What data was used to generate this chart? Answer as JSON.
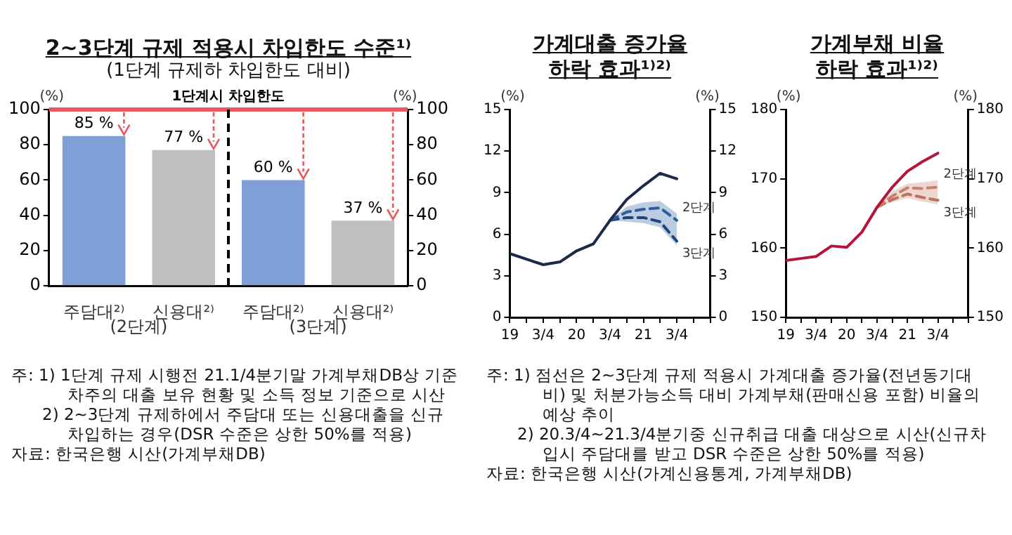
{
  "chart_data": [
    {
      "type": "bar",
      "title": "2~3단계 규제 적용시 차입한도 수준¹⁾",
      "subtitle": "(1단계 규제하 차입한도 대비)",
      "categories": [
        "주담대²⁾",
        "신용대²⁾",
        "주담대²⁾",
        "신용대²⁾"
      ],
      "values": [
        85,
        77,
        60,
        37
      ],
      "colors": [
        "#7f9fd6",
        "#bfbfbf",
        "#7f9fd6",
        "#bfbfbf"
      ],
      "value_labels": [
        "85 %",
        "77 %",
        "60 %",
        "37 %"
      ],
      "ylim": [
        0,
        100
      ],
      "yticks": [
        0,
        20,
        40,
        60,
        80,
        100
      ],
      "y2lim": [
        0,
        100
      ],
      "y2ticks": [
        0,
        20,
        40,
        60,
        80,
        100
      ],
      "ylabel": "(%)",
      "y2label": "(%)",
      "ref_lines": [
        {
          "axis": "y",
          "value": 100,
          "label": "1단계시 차입한도",
          "color": "#e8585f"
        }
      ],
      "annotations": [
        "(2단계)",
        "(3단계)",
        "주: 1) 1단계 규제 시행전 21.1/4분기말 가계부채DB상 기준 차주의 대출 보유 현황 및 소득 정보 기준으로 시산",
        "2) 2~3단계 규제하에서 주담대 또는 신용대출을 신규 차입하는 경우(DSR 수준은 상한 50%를 적용)",
        "자료: 한국은행 시산(가계부채DB)"
      ],
      "grid": false,
      "legend": false
    },
    {
      "type": "line",
      "title": "가계대출 증가율 하락 효과¹⁾²⁾",
      "categories": [
        "19",
        null,
        "3/4",
        null,
        "20",
        null,
        "3/4",
        null,
        "21",
        null,
        "3/4",
        null,
        null
      ],
      "series": [
        {
          "color": "#1b2a47",
          "values": [
            4.6,
            4.2,
            3.8,
            4.0,
            4.8,
            5.3,
            7.0,
            8.5,
            9.5,
            10.4,
            10.0,
            null,
            null
          ]
        },
        {
          "name": "2단계",
          "color": "#2e5f9e",
          "line_style": "dashed",
          "values": [
            null,
            null,
            null,
            null,
            null,
            null,
            7.0,
            7.6,
            7.8,
            7.9,
            7.0,
            null,
            null
          ],
          "lower": [
            null,
            null,
            null,
            null,
            null,
            null,
            7.0,
            6.9,
            6.8,
            6.5,
            5.2,
            null,
            null
          ],
          "upper": [
            null,
            null,
            null,
            null,
            null,
            null,
            7.0,
            8.0,
            8.3,
            8.4,
            7.5,
            null,
            null
          ]
        },
        {
          "name": "3단계",
          "color": "#1b3a6b",
          "line_style": "dashed",
          "values": [
            null,
            null,
            null,
            null,
            null,
            null,
            7.0,
            7.2,
            7.2,
            6.9,
            5.5,
            null,
            null
          ]
        }
      ],
      "ylim": [
        0,
        15
      ],
      "yticks": [
        0,
        3,
        6,
        9,
        12,
        15
      ],
      "y2lim": [
        0,
        15
      ],
      "y2ticks": [
        0,
        3,
        6,
        9,
        12,
        15
      ],
      "ylabel": "(%)",
      "y2label": "(%)",
      "annotations": [
        "주: 1) 점선은 2~3단계 규제 적용시 가계대출 증가율(전년동기대비) 및 처분가능소득 대비 가계부채(판매신용 포함) 비율의 예상 추이",
        "2) 20.3/4~21.3/4분기중 신규취급 대출 대상으로 시산(신규차입시 주담대를 받고 DSR 수준은 상한 50%를 적용)",
        "자료: 한국은행 시산(가계신용통계, 가계부채DB)"
      ],
      "grid": false,
      "legend": false,
      "marker": "none"
    },
    {
      "type": "line",
      "title": "가계부채 비율 하락 효과¹⁾²⁾",
      "categories": [
        "19",
        null,
        "3/4",
        null,
        "20",
        null,
        "3/4",
        null,
        "21",
        null,
        "3/4",
        null,
        null
      ],
      "series": [
        {
          "color": "#b5153a",
          "values": [
            158.2,
            158.5,
            158.8,
            160.3,
            160.1,
            162.3,
            165.9,
            168.8,
            171.1,
            172.5,
            173.7,
            null,
            null
          ]
        },
        {
          "name": "2단계",
          "color": "#c8806c",
          "line_style": "dashed",
          "values": [
            null,
            null,
            null,
            null,
            null,
            null,
            165.9,
            167.5,
            168.7,
            168.6,
            168.8,
            null,
            null
          ],
          "lower": [
            null,
            null,
            null,
            null,
            null,
            null,
            165.9,
            166.6,
            167.2,
            166.7,
            166.3,
            null,
            null
          ],
          "upper": [
            null,
            null,
            null,
            null,
            null,
            null,
            165.9,
            168.2,
            169.3,
            169.5,
            169.8,
            null,
            null
          ]
        },
        {
          "name": "3단계",
          "color": "#b86d5c",
          "line_style": "dashed",
          "values": [
            null,
            null,
            null,
            null,
            null,
            null,
            165.9,
            167.0,
            167.8,
            167.3,
            166.9,
            null,
            null
          ]
        }
      ],
      "ylim": [
        150,
        180
      ],
      "yticks": [
        150,
        160,
        170,
        180
      ],
      "y2lim": [
        150,
        180
      ],
      "y2ticks": [
        150,
        160,
        170,
        180
      ],
      "ylabel": "(%)",
      "y2label": "(%)",
      "grid": false,
      "legend": false,
      "marker": "none"
    }
  ]
}
